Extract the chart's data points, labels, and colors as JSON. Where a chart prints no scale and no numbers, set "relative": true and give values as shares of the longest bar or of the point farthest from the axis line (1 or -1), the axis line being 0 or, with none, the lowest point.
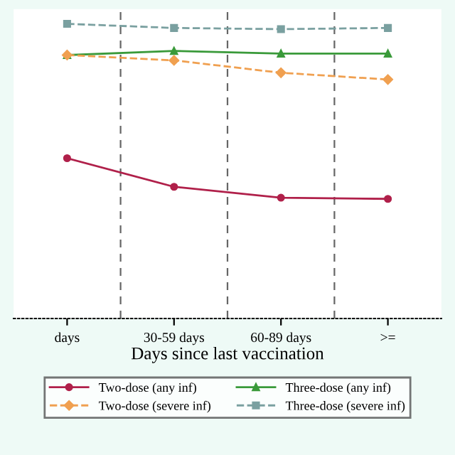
{
  "chart_data": {
    "type": "line",
    "relative": true,
    "xlabel": "Days since last vaccination",
    "categories": [
      "days",
      "30-59 days",
      "60-89 days",
      ">="
    ],
    "series": [
      {
        "name": "Two-dose (any inf)",
        "color": "#b0204a",
        "marker": "circle",
        "line_style": "solid",
        "values": [
          0.544,
          0.447,
          0.41,
          0.406
        ]
      },
      {
        "name": "Two-dose (severe inf)",
        "color": "#f0a050",
        "marker": "diamond",
        "line_style": "dashed",
        "values": [
          0.894,
          0.876,
          0.834,
          0.811
        ]
      },
      {
        "name": "Three-dose (any inf)",
        "color": "#3a9a3a",
        "marker": "triangle",
        "line_style": "solid",
        "values": [
          0.894,
          0.908,
          0.899,
          0.899
        ]
      },
      {
        "name": "Three-dose (severe inf)",
        "color": "#7aa0a0",
        "marker": "square",
        "line_style": "dashed",
        "values": [
          1.0,
          0.986,
          0.982,
          0.986
        ]
      }
    ],
    "grid": "x",
    "legend": "bottom"
  }
}
